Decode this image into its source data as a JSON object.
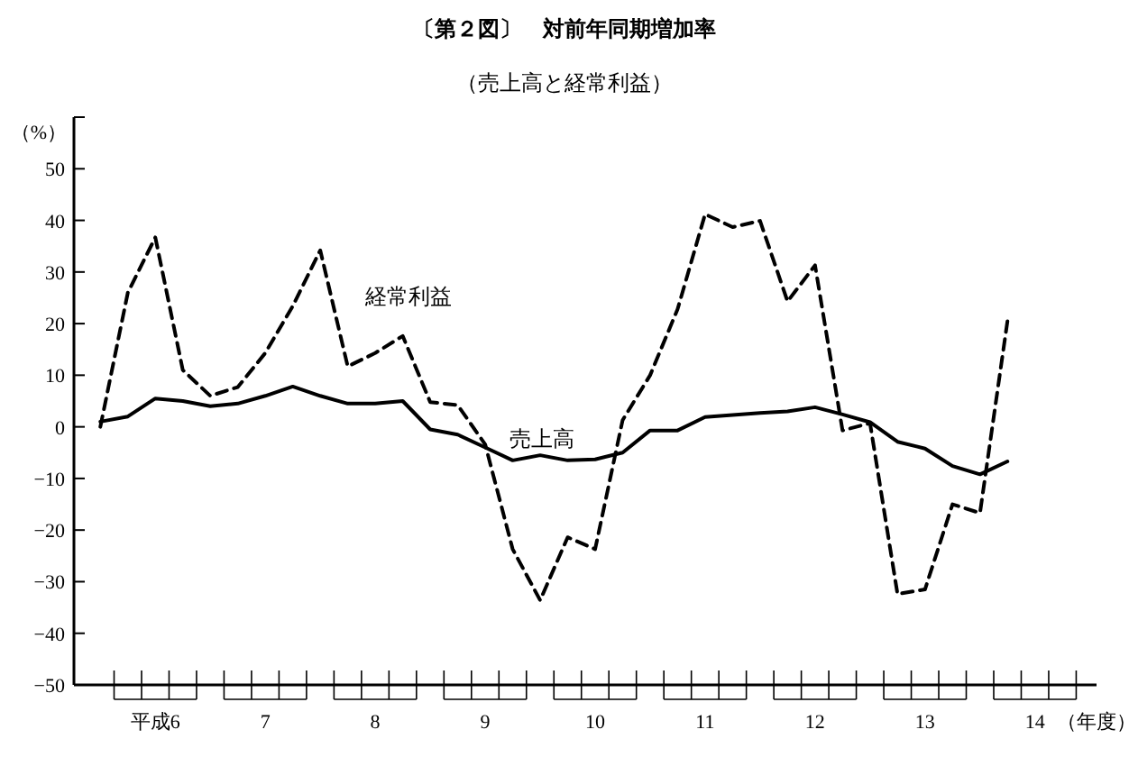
{
  "chart_data": {
    "type": "line",
    "title": "〔第２図〕　対前年同期増加率",
    "subtitle": "（売上高と経常利益）",
    "ylabel": "（%）",
    "xlabel": "（年度）",
    "x": [
      5.5,
      5.75,
      6,
      6.25,
      6.5,
      6.75,
      7,
      7.25,
      7.5,
      7.75,
      8,
      8.25,
      8.5,
      8.75,
      9,
      9.25,
      9.5,
      9.75,
      10,
      10.25,
      10.5,
      10.75,
      11,
      11.25,
      11.5,
      11.75,
      12,
      12.25,
      12.5,
      12.75,
      13,
      13.25,
      13.5,
      13.75
    ],
    "series": [
      {
        "name": "経常利益",
        "color": "#000000",
        "line_style": "dashed",
        "values": [
          0,
          26,
          36.7,
          11,
          6,
          7.7,
          14.3,
          23.4,
          34.2,
          11.7,
          14.3,
          17.6,
          4.8,
          4.2,
          -3.4,
          -23.7,
          -33.6,
          -21.4,
          -23.7,
          1.3,
          10,
          22.8,
          41.2,
          38.7,
          39.9,
          24.3,
          31.3,
          -0.7,
          0.7,
          -32.4,
          -31.5,
          -15,
          -16.7,
          20.5
        ]
      },
      {
        "name": "売上高",
        "color": "#000000",
        "line_style": "solid",
        "values": [
          1,
          2,
          5.5,
          5,
          4,
          4.5,
          6,
          7.8,
          6,
          4.5,
          4.5,
          5,
          -0.5,
          -1.5,
          -4,
          -6.5,
          -5.5,
          -6.5,
          -6.3,
          -5,
          -0.7,
          -0.7,
          1.9,
          2.3,
          2.7,
          3,
          3.8,
          2.4,
          0.9,
          -2.9,
          -4.2,
          -7.6,
          -9.2,
          -6.7
        ]
      }
    ],
    "xlim": [
      5.26,
      14.56
    ],
    "xticks": [
      {
        "value": 6,
        "label": "平成6"
      },
      7,
      8,
      9,
      10,
      11,
      12,
      13,
      14
    ],
    "ylim": [
      -50,
      60
    ],
    "yticks": [
      -50,
      -40,
      -30,
      -20,
      -10,
      0,
      10,
      20,
      30,
      40,
      50
    ],
    "grid": false,
    "legend": false,
    "marker": "none"
  }
}
